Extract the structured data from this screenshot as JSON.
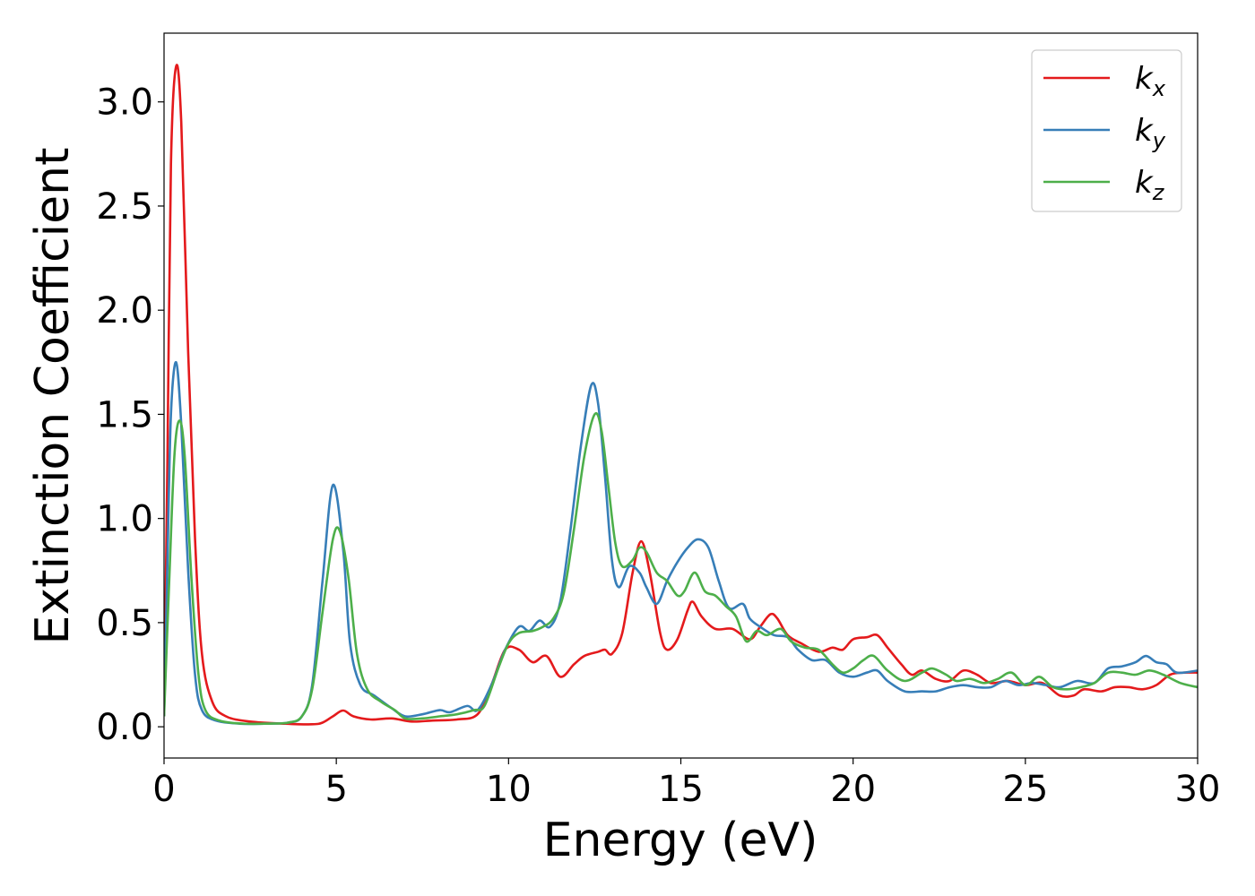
{
  "chart_data": {
    "type": "line",
    "title": "",
    "xlabel": "Energy (eV)",
    "ylabel": "Extinction Coefficient",
    "xlim": [
      0,
      30
    ],
    "ylim": [
      -0.15,
      3.33
    ],
    "xticks": [
      0,
      5,
      10,
      15,
      20,
      25,
      30
    ],
    "xtick_labels": [
      "0",
      "5",
      "10",
      "15",
      "20",
      "25",
      "30"
    ],
    "yticks": [
      0.0,
      0.5,
      1.0,
      1.5,
      2.0,
      2.5,
      3.0
    ],
    "ytick_labels": [
      "0.0",
      "0.5",
      "1.0",
      "1.5",
      "2.0",
      "2.5",
      "3.0"
    ],
    "grid": false,
    "legend_position": "top-right",
    "series": [
      {
        "name": "k_x",
        "label_base": "k",
        "label_sub": "x",
        "color": "#e41a1c",
        "points": [
          [
            0,
            0.05
          ],
          [
            0.1,
            1.3
          ],
          [
            0.2,
            2.7
          ],
          [
            0.35,
            3.17
          ],
          [
            0.5,
            2.9
          ],
          [
            0.7,
            1.8
          ],
          [
            0.9,
            0.9
          ],
          [
            1.1,
            0.35
          ],
          [
            1.4,
            0.12
          ],
          [
            1.8,
            0.05
          ],
          [
            2.5,
            0.025
          ],
          [
            3.5,
            0.015
          ],
          [
            4.3,
            0.012
          ],
          [
            4.6,
            0.02
          ],
          [
            4.9,
            0.05
          ],
          [
            5.2,
            0.078
          ],
          [
            5.5,
            0.05
          ],
          [
            6.0,
            0.035
          ],
          [
            6.6,
            0.04
          ],
          [
            7.2,
            0.025
          ],
          [
            7.8,
            0.03
          ],
          [
            8.5,
            0.035
          ],
          [
            9.1,
            0.06
          ],
          [
            9.5,
            0.2
          ],
          [
            9.9,
            0.37
          ],
          [
            10.3,
            0.37
          ],
          [
            10.7,
            0.31
          ],
          [
            11.1,
            0.34
          ],
          [
            11.5,
            0.24
          ],
          [
            11.9,
            0.3
          ],
          [
            12.2,
            0.34
          ],
          [
            12.6,
            0.36
          ],
          [
            12.8,
            0.37
          ],
          [
            13.0,
            0.35
          ],
          [
            13.3,
            0.45
          ],
          [
            13.6,
            0.74
          ],
          [
            13.85,
            0.89
          ],
          [
            14.1,
            0.74
          ],
          [
            14.4,
            0.45
          ],
          [
            14.6,
            0.37
          ],
          [
            14.9,
            0.42
          ],
          [
            15.2,
            0.56
          ],
          [
            15.35,
            0.6
          ],
          [
            15.6,
            0.53
          ],
          [
            16.0,
            0.47
          ],
          [
            16.5,
            0.47
          ],
          [
            17.0,
            0.42
          ],
          [
            17.3,
            0.48
          ],
          [
            17.6,
            0.54
          ],
          [
            17.8,
            0.52
          ],
          [
            18.1,
            0.44
          ],
          [
            18.5,
            0.4
          ],
          [
            19.0,
            0.36
          ],
          [
            19.4,
            0.38
          ],
          [
            19.7,
            0.37
          ],
          [
            20.0,
            0.42
          ],
          [
            20.4,
            0.43
          ],
          [
            20.7,
            0.44
          ],
          [
            21.0,
            0.38
          ],
          [
            21.4,
            0.3
          ],
          [
            21.7,
            0.25
          ],
          [
            22.0,
            0.27
          ],
          [
            22.4,
            0.23
          ],
          [
            22.8,
            0.22
          ],
          [
            23.2,
            0.27
          ],
          [
            23.6,
            0.25
          ],
          [
            24.0,
            0.21
          ],
          [
            24.5,
            0.22
          ],
          [
            25.0,
            0.2
          ],
          [
            25.5,
            0.21
          ],
          [
            26.0,
            0.15
          ],
          [
            26.4,
            0.15
          ],
          [
            26.7,
            0.18
          ],
          [
            27.2,
            0.17
          ],
          [
            27.6,
            0.19
          ],
          [
            28.0,
            0.19
          ],
          [
            28.4,
            0.18
          ],
          [
            28.8,
            0.2
          ],
          [
            29.2,
            0.25
          ],
          [
            29.6,
            0.26
          ],
          [
            30.0,
            0.26
          ]
        ]
      },
      {
        "name": "k_y",
        "label_base": "k",
        "label_sub": "y",
        "color": "#377eb8",
        "points": [
          [
            0,
            0.05
          ],
          [
            0.1,
            0.8
          ],
          [
            0.2,
            1.5
          ],
          [
            0.35,
            1.75
          ],
          [
            0.5,
            1.45
          ],
          [
            0.7,
            0.75
          ],
          [
            0.9,
            0.25
          ],
          [
            1.1,
            0.08
          ],
          [
            1.5,
            0.03
          ],
          [
            2.2,
            0.015
          ],
          [
            3.0,
            0.015
          ],
          [
            3.6,
            0.02
          ],
          [
            4.0,
            0.05
          ],
          [
            4.3,
            0.2
          ],
          [
            4.6,
            0.7
          ],
          [
            4.9,
            1.16
          ],
          [
            5.2,
            0.85
          ],
          [
            5.4,
            0.4
          ],
          [
            5.7,
            0.2
          ],
          [
            6.1,
            0.15
          ],
          [
            6.6,
            0.09
          ],
          [
            7.0,
            0.05
          ],
          [
            7.5,
            0.06
          ],
          [
            8.0,
            0.08
          ],
          [
            8.3,
            0.07
          ],
          [
            8.8,
            0.1
          ],
          [
            9.1,
            0.08
          ],
          [
            9.5,
            0.2
          ],
          [
            9.9,
            0.37
          ],
          [
            10.3,
            0.48
          ],
          [
            10.6,
            0.46
          ],
          [
            10.9,
            0.51
          ],
          [
            11.2,
            0.48
          ],
          [
            11.5,
            0.6
          ],
          [
            11.8,
            0.95
          ],
          [
            12.1,
            1.35
          ],
          [
            12.4,
            1.64
          ],
          [
            12.6,
            1.55
          ],
          [
            12.8,
            1.2
          ],
          [
            13.0,
            0.8
          ],
          [
            13.2,
            0.67
          ],
          [
            13.5,
            0.77
          ],
          [
            13.8,
            0.74
          ],
          [
            14.0,
            0.67
          ],
          [
            14.3,
            0.59
          ],
          [
            14.6,
            0.7
          ],
          [
            14.9,
            0.79
          ],
          [
            15.2,
            0.86
          ],
          [
            15.5,
            0.9
          ],
          [
            15.8,
            0.86
          ],
          [
            16.1,
            0.7
          ],
          [
            16.4,
            0.57
          ],
          [
            16.8,
            0.59
          ],
          [
            17.0,
            0.52
          ],
          [
            17.3,
            0.48
          ],
          [
            17.7,
            0.44
          ],
          [
            18.1,
            0.43
          ],
          [
            18.4,
            0.37
          ],
          [
            18.8,
            0.32
          ],
          [
            19.2,
            0.32
          ],
          [
            19.6,
            0.26
          ],
          [
            20.0,
            0.24
          ],
          [
            20.4,
            0.26
          ],
          [
            20.7,
            0.27
          ],
          [
            21.0,
            0.22
          ],
          [
            21.5,
            0.17
          ],
          [
            22.0,
            0.17
          ],
          [
            22.4,
            0.17
          ],
          [
            22.8,
            0.19
          ],
          [
            23.2,
            0.2
          ],
          [
            23.6,
            0.19
          ],
          [
            24.0,
            0.19
          ],
          [
            24.4,
            0.22
          ],
          [
            24.8,
            0.2
          ],
          [
            25.2,
            0.21
          ],
          [
            25.6,
            0.2
          ],
          [
            26.0,
            0.19
          ],
          [
            26.5,
            0.22
          ],
          [
            27.0,
            0.21
          ],
          [
            27.4,
            0.28
          ],
          [
            27.8,
            0.29
          ],
          [
            28.2,
            0.31
          ],
          [
            28.5,
            0.34
          ],
          [
            28.8,
            0.31
          ],
          [
            29.1,
            0.3
          ],
          [
            29.4,
            0.26
          ],
          [
            30.0,
            0.27
          ]
        ]
      },
      {
        "name": "k_z",
        "label_base": "k",
        "label_sub": "z",
        "color": "#4daf4a",
        "points": [
          [
            0,
            0.05
          ],
          [
            0.15,
            0.7
          ],
          [
            0.3,
            1.3
          ],
          [
            0.45,
            1.47
          ],
          [
            0.6,
            1.3
          ],
          [
            0.8,
            0.7
          ],
          [
            1.0,
            0.25
          ],
          [
            1.2,
            0.08
          ],
          [
            1.6,
            0.03
          ],
          [
            2.3,
            0.015
          ],
          [
            3.0,
            0.015
          ],
          [
            3.6,
            0.02
          ],
          [
            4.0,
            0.05
          ],
          [
            4.3,
            0.18
          ],
          [
            4.6,
            0.55
          ],
          [
            4.9,
            0.9
          ],
          [
            5.1,
            0.94
          ],
          [
            5.35,
            0.72
          ],
          [
            5.6,
            0.35
          ],
          [
            5.9,
            0.18
          ],
          [
            6.3,
            0.12
          ],
          [
            6.7,
            0.08
          ],
          [
            7.0,
            0.04
          ],
          [
            7.5,
            0.04
          ],
          [
            8.0,
            0.05
          ],
          [
            8.5,
            0.06
          ],
          [
            9.0,
            0.08
          ],
          [
            9.3,
            0.1
          ],
          [
            9.7,
            0.28
          ],
          [
            10.0,
            0.4
          ],
          [
            10.3,
            0.45
          ],
          [
            10.7,
            0.46
          ],
          [
            11.0,
            0.48
          ],
          [
            11.3,
            0.52
          ],
          [
            11.6,
            0.64
          ],
          [
            11.9,
            0.95
          ],
          [
            12.2,
            1.3
          ],
          [
            12.5,
            1.5
          ],
          [
            12.7,
            1.42
          ],
          [
            12.9,
            1.15
          ],
          [
            13.1,
            0.88
          ],
          [
            13.3,
            0.77
          ],
          [
            13.6,
            0.8
          ],
          [
            13.8,
            0.86
          ],
          [
            14.0,
            0.84
          ],
          [
            14.3,
            0.74
          ],
          [
            14.6,
            0.7
          ],
          [
            14.9,
            0.63
          ],
          [
            15.1,
            0.65
          ],
          [
            15.4,
            0.74
          ],
          [
            15.7,
            0.65
          ],
          [
            16.0,
            0.63
          ],
          [
            16.3,
            0.58
          ],
          [
            16.6,
            0.53
          ],
          [
            16.9,
            0.41
          ],
          [
            17.2,
            0.46
          ],
          [
            17.5,
            0.44
          ],
          [
            17.9,
            0.47
          ],
          [
            18.2,
            0.41
          ],
          [
            18.6,
            0.38
          ],
          [
            19.0,
            0.37
          ],
          [
            19.4,
            0.3
          ],
          [
            19.7,
            0.26
          ],
          [
            20.0,
            0.28
          ],
          [
            20.3,
            0.32
          ],
          [
            20.6,
            0.34
          ],
          [
            21.0,
            0.27
          ],
          [
            21.5,
            0.22
          ],
          [
            22.0,
            0.26
          ],
          [
            22.3,
            0.28
          ],
          [
            22.7,
            0.25
          ],
          [
            23.0,
            0.22
          ],
          [
            23.4,
            0.23
          ],
          [
            23.8,
            0.21
          ],
          [
            24.2,
            0.23
          ],
          [
            24.6,
            0.26
          ],
          [
            25.0,
            0.2
          ],
          [
            25.4,
            0.24
          ],
          [
            25.8,
            0.19
          ],
          [
            26.2,
            0.18
          ],
          [
            26.6,
            0.19
          ],
          [
            27.0,
            0.21
          ],
          [
            27.4,
            0.26
          ],
          [
            27.8,
            0.26
          ],
          [
            28.2,
            0.25
          ],
          [
            28.6,
            0.27
          ],
          [
            29.0,
            0.25
          ],
          [
            29.5,
            0.21
          ],
          [
            30.0,
            0.19
          ]
        ]
      }
    ]
  }
}
